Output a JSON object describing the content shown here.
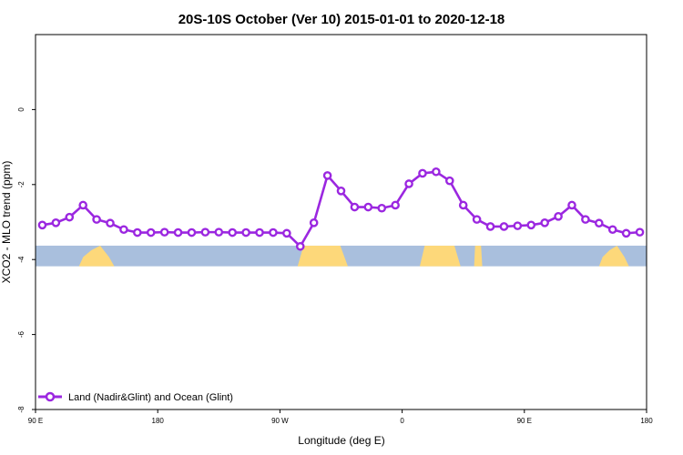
{
  "chart_data": {
    "type": "line",
    "title": "20S-10S October (Ver 10)   2015-01-01 to 2020-12-18",
    "xlabel": "Longitude (deg E)",
    "ylabel": "XCO2 - MLO trend (ppm)",
    "xlim": [
      90,
      540
    ],
    "ylim": [
      -8,
      2
    ],
    "xticks": [
      {
        "value": 90,
        "label": "90 E"
      },
      {
        "value": 180,
        "label": "180"
      },
      {
        "value": 270,
        "label": "90 W"
      },
      {
        "value": 360,
        "label": "0"
      },
      {
        "value": 450,
        "label": "90 E"
      },
      {
        "value": 540,
        "label": "180"
      }
    ],
    "yticks": [
      {
        "value": 0,
        "label": "0"
      },
      {
        "value": -2,
        "label": "-2"
      },
      {
        "value": -4,
        "label": "-4"
      },
      {
        "value": -6,
        "label": "-6"
      },
      {
        "value": -8,
        "label": "-8"
      }
    ],
    "legend": {
      "position": "bottom-left"
    },
    "colors": {
      "line": "#9b27e0",
      "ocean": "#a9bfdd",
      "land": "#fdd87a"
    },
    "series": [
      {
        "name": "Land (Nadir&Glint) and Ocean (Glint)",
        "x": [
          95,
          105,
          115,
          125,
          135,
          145,
          155,
          165,
          175,
          185,
          195,
          205,
          215,
          225,
          235,
          245,
          255,
          265,
          275,
          285,
          295,
          305,
          315,
          325,
          335,
          345,
          355,
          365,
          375,
          385,
          395,
          405,
          415,
          425,
          435,
          445,
          455,
          465,
          475,
          485,
          495,
          505,
          515,
          525,
          535
        ],
        "y": [
          -3.08,
          -3.02,
          -2.87,
          -2.55,
          -2.93,
          -3.03,
          -3.2,
          -3.28,
          -3.28,
          -3.27,
          -3.28,
          -3.28,
          -3.27,
          -3.27,
          -3.28,
          -3.28,
          -3.28,
          -3.28,
          -3.3,
          -3.65,
          -3.02,
          -1.76,
          -2.17,
          -2.6,
          -2.6,
          -2.63,
          -2.55,
          -1.98,
          -1.7,
          -1.66,
          -1.9,
          -2.55,
          -2.93,
          -3.12,
          -3.12,
          -3.1,
          -3.08,
          -3.02,
          -2.85,
          -2.55,
          -2.93,
          -3.03,
          -3.2,
          -3.3,
          -3.27
        ]
      }
    ],
    "land_mask": {
      "y_range": [
        -4.18,
        -3.63
      ],
      "land_lon_ranges": [
        [
          122,
          148
        ],
        [
          283,
          320
        ],
        [
          373,
          403
        ],
        [
          413,
          419
        ],
        [
          505,
          527
        ]
      ]
    }
  }
}
